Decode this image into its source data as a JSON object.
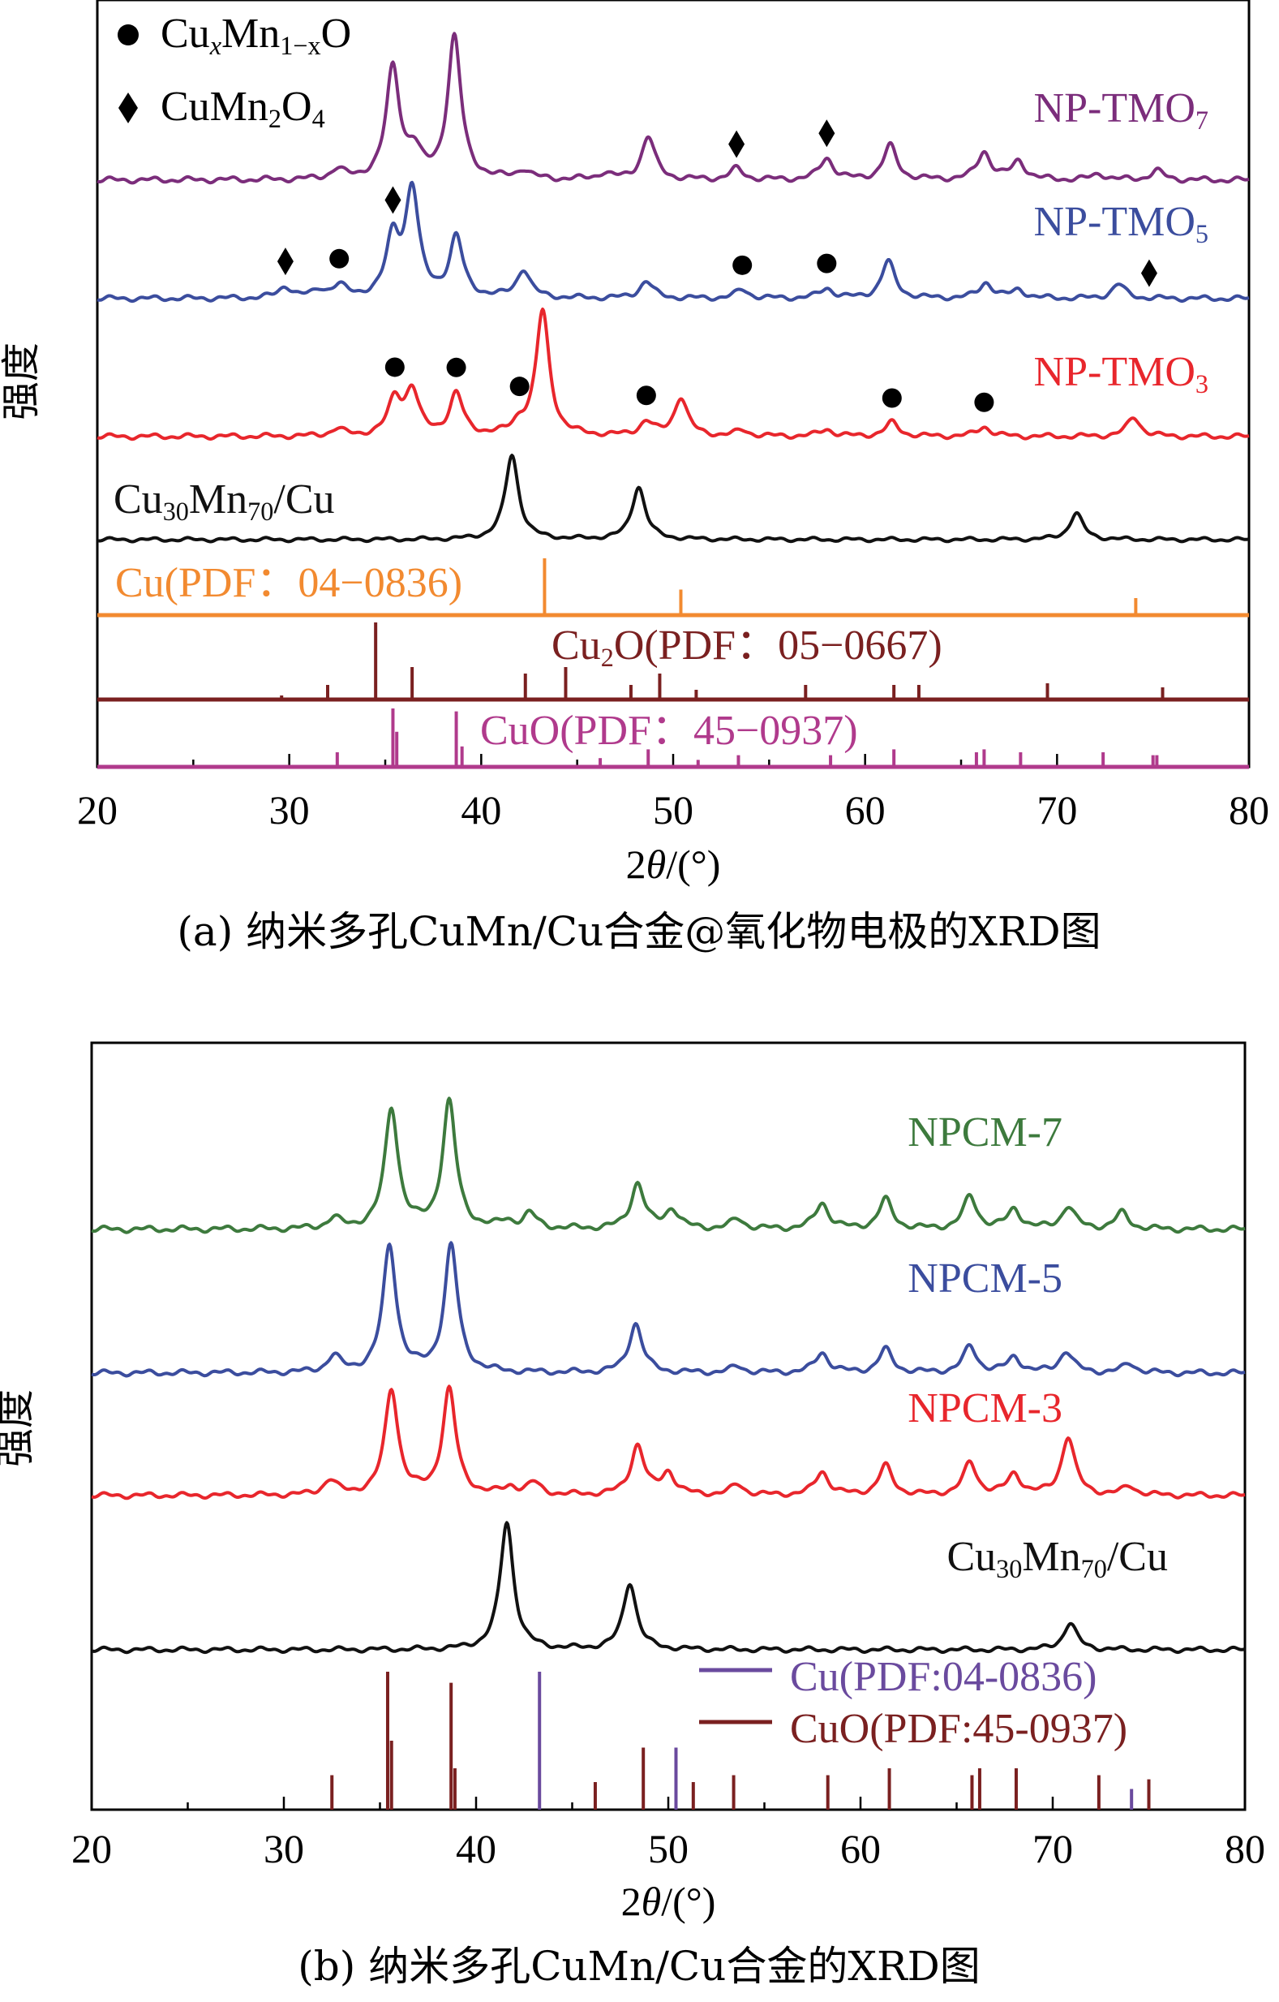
{
  "chart_data": [
    {
      "type": "line",
      "panel": "a",
      "caption": "(a) 纳米多孔CuMn/Cu合金@氧化物电极的XRD图",
      "xlabel": "2θ/(°)",
      "ylabel": "强度",
      "xlim": [
        20,
        80
      ],
      "x_ticks": [
        "20",
        "30",
        "40",
        "50",
        "60",
        "70",
        "80"
      ],
      "grid": false,
      "legend": {
        "position": "top-left",
        "entries": [
          {
            "symbol": "circle",
            "label": "CuxMn1−xO"
          },
          {
            "symbol": "diamond",
            "label": "CuMn2O4"
          }
        ]
      },
      "series": [
        {
          "name": "NP-TMO7",
          "color": "#7b2d7b",
          "baseline": 1.0,
          "peaks": [
            [
              32.5,
              0.06
            ],
            [
              35.4,
              0.72
            ],
            [
              36.5,
              0.16
            ],
            [
              38.6,
              0.92
            ],
            [
              42.2,
              0.06
            ],
            [
              46.4,
              0.04
            ],
            [
              48.7,
              0.28
            ],
            [
              53.3,
              0.07
            ],
            [
              58.0,
              0.14
            ],
            [
              61.3,
              0.22
            ],
            [
              66.2,
              0.18
            ],
            [
              68.0,
              0.12
            ],
            [
              72.2,
              0.04
            ],
            [
              75.2,
              0.06
            ]
          ],
          "markers": [
            {
              "x": 53.3,
              "symbol": "diamond"
            },
            {
              "x": 58.0,
              "symbol": "diamond"
            }
          ]
        },
        {
          "name": "NP-TMO5",
          "color": "#3b4d9e",
          "baseline": 0.75,
          "peaks": [
            [
              29.8,
              0.08
            ],
            [
              31.6,
              0.05
            ],
            [
              32.6,
              0.08
            ],
            [
              35.4,
              0.4
            ],
            [
              36.4,
              0.75
            ],
            [
              38.7,
              0.42
            ],
            [
              42.2,
              0.2
            ],
            [
              48.6,
              0.12
            ],
            [
              53.6,
              0.06
            ],
            [
              58.0,
              0.07
            ],
            [
              61.2,
              0.26
            ],
            [
              66.3,
              0.11
            ],
            [
              68.0,
              0.06
            ],
            [
              73.2,
              0.1
            ]
          ],
          "markers": [
            {
              "x": 29.8,
              "symbol": "diamond"
            },
            {
              "x": 32.6,
              "symbol": "circle"
            },
            {
              "x": 35.4,
              "symbol": "diamond"
            },
            {
              "x": 53.6,
              "symbol": "circle"
            },
            {
              "x": 58.0,
              "symbol": "circle"
            },
            {
              "x": 74.8,
              "symbol": "diamond"
            }
          ]
        },
        {
          "name": "NP-TMO3",
          "color": "#e8262c",
          "baseline": 0.5,
          "peaks": [
            [
              32.5,
              0.05
            ],
            [
              35.5,
              0.26
            ],
            [
              36.4,
              0.32
            ],
            [
              38.7,
              0.3
            ],
            [
              42.0,
              0.08
            ],
            [
              43.2,
              0.9
            ],
            [
              48.6,
              0.1
            ],
            [
              50.4,
              0.28
            ],
            [
              53.6,
              0.04
            ],
            [
              58.0,
              0.05
            ],
            [
              61.4,
              0.1
            ],
            [
              66.2,
              0.07
            ],
            [
              74.0,
              0.14
            ]
          ],
          "markers": [
            {
              "x": 35.5,
              "symbol": "circle"
            },
            {
              "x": 38.7,
              "symbol": "circle"
            },
            {
              "x": 42.0,
              "symbol": "circle"
            },
            {
              "x": 48.6,
              "symbol": "circle"
            },
            {
              "x": 61.4,
              "symbol": "circle"
            },
            {
              "x": 66.2,
              "symbol": "circle"
            }
          ]
        },
        {
          "name": "Cu30Mn70/Cu",
          "color": "#111111",
          "baseline": 0.25,
          "peaks": [
            [
              41.6,
              0.8
            ],
            [
              48.2,
              0.5
            ],
            [
              71.0,
              0.25
            ]
          ],
          "markers": []
        }
      ],
      "references": [
        {
          "name": "Cu(PDF：04−0836)",
          "color": "#f28a30",
          "style": "box",
          "lines": [
            [
              43.3,
              1.0
            ],
            [
              50.4,
              0.45
            ],
            [
              74.1,
              0.3
            ]
          ]
        },
        {
          "name": "Cu2O(PDF：05−0667)",
          "color": "#7a2020",
          "style": "box",
          "lines": [
            [
              29.6,
              0.05
            ],
            [
              32.0,
              0.18
            ],
            [
              34.5,
              0.95
            ],
            [
              36.4,
              0.4
            ],
            [
              42.3,
              0.32
            ],
            [
              44.4,
              0.4
            ],
            [
              47.8,
              0.18
            ],
            [
              49.3,
              0.32
            ],
            [
              51.2,
              0.12
            ],
            [
              56.9,
              0.18
            ],
            [
              61.5,
              0.18
            ],
            [
              62.8,
              0.18
            ],
            [
              69.5,
              0.2
            ],
            [
              75.5,
              0.15
            ]
          ]
        },
        {
          "name": "CuO(PDF：45−0937)",
          "color": "#b03a8c",
          "style": "box",
          "lines": [
            [
              32.5,
              0.25
            ],
            [
              35.4,
              1.0
            ],
            [
              35.6,
              0.6
            ],
            [
              38.7,
              0.95
            ],
            [
              39.0,
              0.35
            ],
            [
              46.2,
              0.15
            ],
            [
              48.7,
              0.3
            ],
            [
              51.3,
              0.12
            ],
            [
              53.4,
              0.2
            ],
            [
              58.2,
              0.2
            ],
            [
              61.5,
              0.3
            ],
            [
              65.8,
              0.25
            ],
            [
              66.2,
              0.3
            ],
            [
              68.1,
              0.25
            ],
            [
              72.4,
              0.25
            ],
            [
              75.0,
              0.2
            ],
            [
              75.2,
              0.2
            ]
          ]
        }
      ]
    },
    {
      "type": "line",
      "panel": "b",
      "caption": "(b) 纳米多孔CuMn/Cu合金的XRD图",
      "xlabel": "2θ/(°)",
      "ylabel": "强度",
      "xlim": [
        20,
        80
      ],
      "x_ticks": [
        "20",
        "30",
        "40",
        "50",
        "60",
        "70",
        "80"
      ],
      "grid": false,
      "legend": {
        "position": "bottom-right",
        "entries": [
          {
            "symbol": "line",
            "color": "#6a4a9e",
            "label": "Cu(PDF:04-0836)"
          },
          {
            "symbol": "line",
            "color": "#7a2020",
            "label": "CuO(PDF:45-0937)"
          }
        ]
      },
      "series": [
        {
          "name": "NPCM-7",
          "color": "#3d7a3d",
          "baseline": 1.0,
          "peaks": [
            [
              32.6,
              0.06
            ],
            [
              35.6,
              0.74
            ],
            [
              38.6,
              0.78
            ],
            [
              41.6,
              0.04
            ],
            [
              42.8,
              0.09
            ],
            [
              48.4,
              0.28
            ],
            [
              50.2,
              0.12
            ],
            [
              53.6,
              0.06
            ],
            [
              58.0,
              0.16
            ],
            [
              61.3,
              0.18
            ],
            [
              65.7,
              0.2
            ],
            [
              68.0,
              0.12
            ],
            [
              70.8,
              0.14
            ],
            [
              73.6,
              0.1
            ]
          ]
        },
        {
          "name": "NPCM-5",
          "color": "#3b4d9e",
          "baseline": 0.7,
          "peaks": [
            [
              32.6,
              0.1
            ],
            [
              35.5,
              0.82
            ],
            [
              38.7,
              0.82
            ],
            [
              48.3,
              0.32
            ],
            [
              53.6,
              0.04
            ],
            [
              58.0,
              0.13
            ],
            [
              61.3,
              0.15
            ],
            [
              65.7,
              0.17
            ],
            [
              68.0,
              0.1
            ],
            [
              70.7,
              0.14
            ],
            [
              74.0,
              0.06
            ]
          ]
        },
        {
          "name": "NPCM-3",
          "color": "#e8262c",
          "baseline": 0.45,
          "peaks": [
            [
              32.4,
              0.1
            ],
            [
              35.6,
              0.72
            ],
            [
              38.6,
              0.72
            ],
            [
              41.8,
              0.05
            ],
            [
              43.0,
              0.08
            ],
            [
              48.4,
              0.34
            ],
            [
              50.0,
              0.15
            ],
            [
              53.6,
              0.07
            ],
            [
              58.0,
              0.16
            ],
            [
              61.3,
              0.2
            ],
            [
              65.7,
              0.22
            ],
            [
              68.0,
              0.14
            ],
            [
              70.8,
              0.4
            ],
            [
              74.0,
              0.06
            ]
          ]
        },
        {
          "name": "Cu30Mn70/Cu",
          "color": "#111111",
          "baseline": 0.2,
          "peaks": [
            [
              41.6,
              0.95
            ],
            [
              48.0,
              0.5
            ],
            [
              70.9,
              0.2
            ]
          ]
        }
      ],
      "references": [
        {
          "name": "Cu(PDF:04-0836)",
          "color": "#6a4a9e",
          "style": "plain",
          "lines": [
            [
              43.3,
              1.0
            ],
            [
              50.4,
              0.45
            ],
            [
              74.1,
              0.15
            ]
          ]
        },
        {
          "name": "CuO(PDF:45-0937)",
          "color": "#7a2020",
          "style": "plain",
          "lines": [
            [
              32.5,
              0.25
            ],
            [
              35.4,
              1.0
            ],
            [
              35.6,
              0.5
            ],
            [
              38.7,
              0.92
            ],
            [
              38.9,
              0.3
            ],
            [
              46.2,
              0.2
            ],
            [
              48.7,
              0.45
            ],
            [
              51.3,
              0.2
            ],
            [
              53.4,
              0.25
            ],
            [
              58.3,
              0.25
            ],
            [
              61.5,
              0.3
            ],
            [
              65.8,
              0.25
            ],
            [
              66.2,
              0.3
            ],
            [
              68.1,
              0.3
            ],
            [
              72.4,
              0.25
            ],
            [
              75.0,
              0.22
            ]
          ]
        }
      ]
    }
  ]
}
